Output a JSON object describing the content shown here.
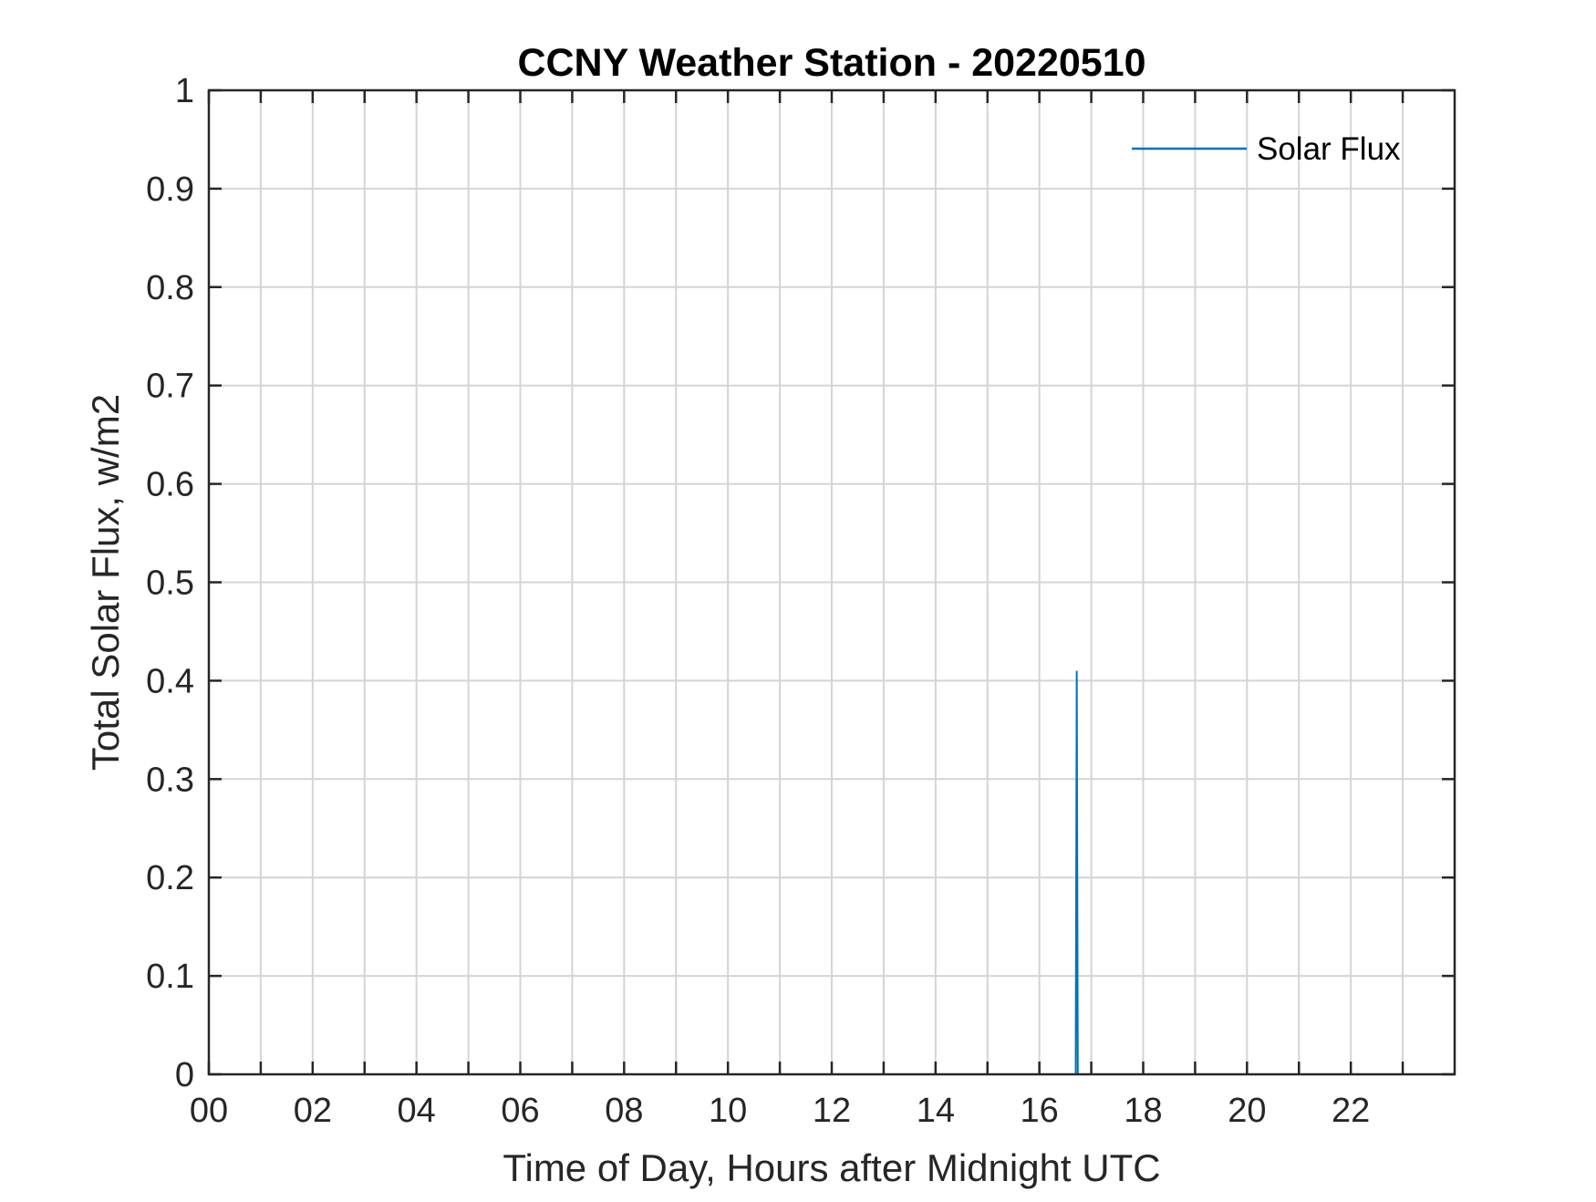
{
  "chart_data": {
    "type": "line",
    "title": "CCNY Weather Station - 20220510",
    "xlabel": "Time of Day, Hours after Midnight UTC",
    "ylabel": "Total Solar Flux, w/m2",
    "xlim": [
      0,
      24
    ],
    "ylim": [
      0,
      1
    ],
    "x_ticks": [
      0,
      2,
      4,
      6,
      8,
      10,
      12,
      14,
      16,
      18,
      20,
      22
    ],
    "x_tick_labels": [
      "00",
      "02",
      "04",
      "06",
      "08",
      "10",
      "12",
      "14",
      "16",
      "18",
      "20",
      "22"
    ],
    "x_minor_ticks": [
      1,
      3,
      5,
      7,
      9,
      11,
      13,
      15,
      17,
      19,
      21,
      23
    ],
    "y_ticks": [
      0,
      0.1,
      0.2,
      0.3,
      0.4,
      0.5,
      0.6,
      0.7,
      0.8,
      0.9,
      1
    ],
    "y_tick_labels": [
      "0",
      "0.1",
      "0.2",
      "0.3",
      "0.4",
      "0.5",
      "0.6",
      "0.7",
      "0.8",
      "0.9",
      "1"
    ],
    "grid": true,
    "legend_position": "top-right",
    "series": [
      {
        "name": "Solar Flux",
        "color": "#0072BD",
        "x": [
          16.7,
          16.72,
          16.74
        ],
        "y": [
          0,
          0.41,
          0
        ]
      }
    ]
  }
}
